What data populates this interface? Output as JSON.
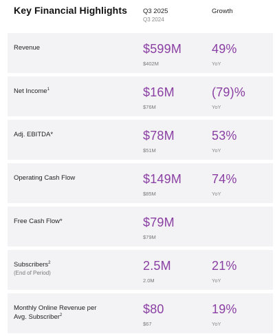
{
  "header": {
    "title": "Key Financial Highlights",
    "period_current": "Q3 2025",
    "period_prior": "Q3 2024",
    "growth_label": "Growth"
  },
  "rows": [
    {
      "label": "Revenue",
      "sup": "",
      "sub": "",
      "value": "$599M",
      "prior": "$402M",
      "growth": "49%",
      "yoy": "YoY"
    },
    {
      "label": "Net Income",
      "sup": "1",
      "sub": "",
      "value": "$16M",
      "prior": "$76M",
      "growth": "(79)%",
      "yoy": "YoY"
    },
    {
      "label": "Adj. EBITDA*",
      "sup": "",
      "sub": "",
      "value": "$78M",
      "prior": "$51M",
      "growth": "53%",
      "yoy": "YoY"
    },
    {
      "label": "Operating Cash Flow",
      "sup": "",
      "sub": "",
      "value": "$149M",
      "prior": "$85M",
      "growth": "74%",
      "yoy": "YoY"
    },
    {
      "label": "Free Cash Flow*",
      "sup": "",
      "sub": "",
      "value": "$79M",
      "prior": "$79M",
      "growth": "",
      "yoy": ""
    },
    {
      "label": "Subscribers",
      "sup": "2",
      "sub": "(End of Period)",
      "value": "2.5M",
      "prior": "2.0M",
      "growth": "21%",
      "yoy": "YoY"
    },
    {
      "label": "Monthly Online Revenue per Avg. Subscriber",
      "sup": "2",
      "sub": "",
      "value": "$80",
      "prior": "$67",
      "growth": "19%",
      "yoy": "YoY"
    }
  ],
  "colors": {
    "accent": "#8a3fa3",
    "row_bg": "#f3f2f5"
  }
}
